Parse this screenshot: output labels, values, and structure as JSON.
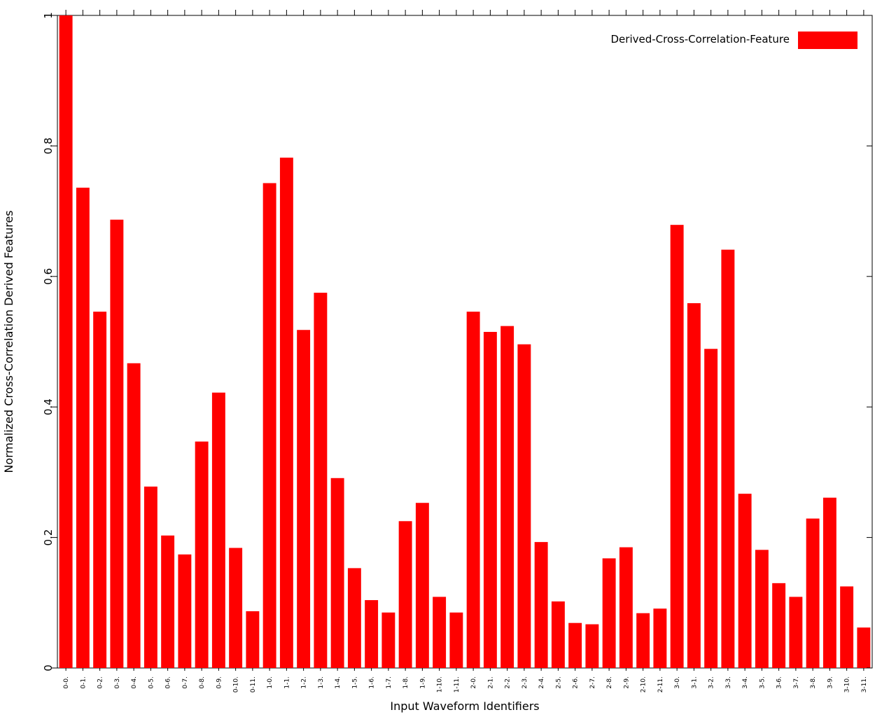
{
  "chart_data": {
    "type": "bar",
    "xlabel": "Input Waveform Identifiers",
    "ylabel": "Normalized Cross-Correlation Derived Features",
    "ylim": [
      0,
      1
    ],
    "yticks": [
      "0",
      "0.2",
      "0.4",
      "0.6",
      "0.8",
      "1"
    ],
    "grid": false,
    "legend_position": "top-right",
    "categories": [
      "0-0.",
      "0-1.",
      "0-2.",
      "0-3.",
      "0-4.",
      "0-5.",
      "0-6.",
      "0-7.",
      "0-8.",
      "0-9.",
      "0-10.",
      "0-11.",
      "1-0.",
      "1-1.",
      "1-2.",
      "1-3.",
      "1-4.",
      "1-5.",
      "1-6.",
      "1-7.",
      "1-8.",
      "1-9.",
      "1-10.",
      "1-11.",
      "2-0.",
      "2-1.",
      "2-2.",
      "2-3.",
      "2-4.",
      "2-5.",
      "2-6.",
      "2-7.",
      "2-8.",
      "2-9.",
      "2-10.",
      "2-11.",
      "3-0.",
      "3-1.",
      "3-2.",
      "3-3.",
      "3-4.",
      "3-5.",
      "3-6.",
      "3-7.",
      "3-8.",
      "3-9.",
      "3-10.",
      "3-11."
    ],
    "series": [
      {
        "name": "Derived-Cross-Correlation-Feature",
        "color": "#ff0000",
        "values": [
          1.0,
          0.736,
          0.546,
          0.687,
          0.467,
          0.278,
          0.203,
          0.174,
          0.347,
          0.422,
          0.184,
          0.087,
          0.743,
          0.782,
          0.518,
          0.575,
          0.291,
          0.153,
          0.104,
          0.085,
          0.225,
          0.253,
          0.109,
          0.085,
          0.546,
          0.515,
          0.524,
          0.496,
          0.193,
          0.102,
          0.069,
          0.067,
          0.168,
          0.185,
          0.084,
          0.091,
          0.679,
          0.559,
          0.489,
          0.641,
          0.267,
          0.181,
          0.13,
          0.109,
          0.229,
          0.261,
          0.125,
          0.062
        ]
      }
    ]
  }
}
